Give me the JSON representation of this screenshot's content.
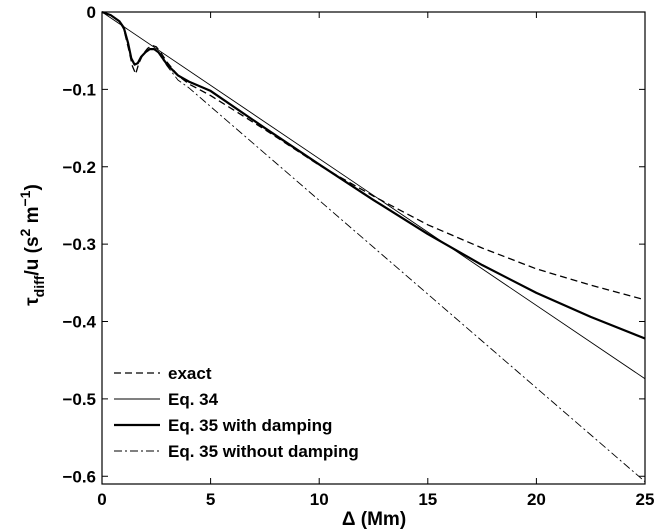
{
  "chart_data": {
    "type": "line",
    "title": "",
    "xlabel": "Δ  (Mm)",
    "ylabel": {
      "base": "τ",
      "sub": "diff",
      "rest": "/u  (s",
      "sup1": "2",
      "mid": " m",
      "sup2": "−1",
      "end": ")"
    },
    "xlim": [
      0,
      25
    ],
    "ylim": [
      -0.61,
      0
    ],
    "xticks": [
      0,
      5,
      10,
      15,
      20,
      25
    ],
    "xtick_labels": [
      "0",
      "5",
      "10",
      "15",
      "20",
      "25"
    ],
    "yticks": [
      0,
      -0.1,
      -0.2,
      -0.3,
      -0.4,
      -0.5,
      -0.6
    ],
    "ytick_labels": [
      "0",
      "−0.1",
      "−0.2",
      "−0.3",
      "−0.4",
      "−0.5",
      "−0.6"
    ],
    "grid": false,
    "legend_position": "bottom-left",
    "series": [
      {
        "name": "exact",
        "style": "dashed",
        "color": "#000000",
        "points": [
          [
            0,
            0
          ],
          [
            0.4,
            -0.004
          ],
          [
            0.8,
            -0.012
          ],
          [
            1.0,
            -0.022
          ],
          [
            1.2,
            -0.045
          ],
          [
            1.4,
            -0.07
          ],
          [
            1.55,
            -0.08
          ],
          [
            1.7,
            -0.066
          ],
          [
            1.9,
            -0.054
          ],
          [
            2.1,
            -0.047
          ],
          [
            2.3,
            -0.043
          ],
          [
            2.5,
            -0.045
          ],
          [
            2.7,
            -0.052
          ],
          [
            3.0,
            -0.065
          ],
          [
            3.5,
            -0.082
          ],
          [
            4,
            -0.093
          ],
          [
            5,
            -0.108
          ],
          [
            7.5,
            -0.152
          ],
          [
            10,
            -0.198
          ],
          [
            12.5,
            -0.238
          ],
          [
            15,
            -0.275
          ],
          [
            17.5,
            -0.305
          ],
          [
            20,
            -0.332
          ],
          [
            22.5,
            -0.353
          ],
          [
            25,
            -0.372
          ]
        ]
      },
      {
        "name": "Eq. 34",
        "style": "solid-thin",
        "color": "#000000",
        "points": [
          [
            0,
            0
          ],
          [
            25,
            -0.474
          ]
        ]
      },
      {
        "name": "Eq. 35 with damping",
        "style": "solid-thick",
        "color": "#000000",
        "points": [
          [
            0,
            0
          ],
          [
            0.4,
            -0.004
          ],
          [
            0.8,
            -0.012
          ],
          [
            1.0,
            -0.02
          ],
          [
            1.2,
            -0.04
          ],
          [
            1.35,
            -0.06
          ],
          [
            1.5,
            -0.068
          ],
          [
            1.65,
            -0.066
          ],
          [
            1.8,
            -0.058
          ],
          [
            2.0,
            -0.052
          ],
          [
            2.2,
            -0.048
          ],
          [
            2.4,
            -0.048
          ],
          [
            2.6,
            -0.052
          ],
          [
            3.0,
            -0.068
          ],
          [
            3.5,
            -0.082
          ],
          [
            4,
            -0.09
          ],
          [
            5,
            -0.102
          ],
          [
            7.5,
            -0.15
          ],
          [
            10,
            -0.197
          ],
          [
            12.5,
            -0.243
          ],
          [
            15,
            -0.287
          ],
          [
            17.5,
            -0.327
          ],
          [
            20,
            -0.363
          ],
          [
            22.5,
            -0.394
          ],
          [
            25,
            -0.422
          ]
        ]
      },
      {
        "name": "Eq. 35 without damping",
        "style": "dash-dot",
        "color": "#000000",
        "points": [
          [
            0,
            0
          ],
          [
            0.4,
            -0.004
          ],
          [
            0.8,
            -0.012
          ],
          [
            1.0,
            -0.02
          ],
          [
            1.2,
            -0.04
          ],
          [
            1.35,
            -0.06
          ],
          [
            1.5,
            -0.068
          ],
          [
            1.65,
            -0.066
          ],
          [
            1.8,
            -0.058
          ],
          [
            2.0,
            -0.052
          ],
          [
            2.2,
            -0.048
          ],
          [
            2.4,
            -0.048
          ],
          [
            2.6,
            -0.053
          ],
          [
            3.0,
            -0.07
          ],
          [
            3.5,
            -0.088
          ],
          [
            4,
            -0.098
          ],
          [
            25,
            -0.607
          ]
        ]
      }
    ]
  }
}
